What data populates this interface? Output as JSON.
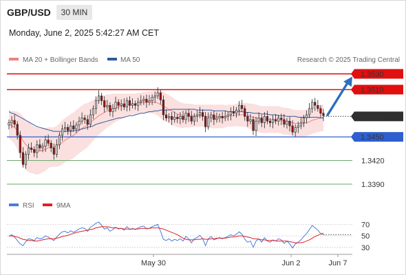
{
  "header": {
    "symbol": "GBP/USD",
    "timeframe": "30 MIN",
    "datetime": "Monday, June 2, 2025 5:42:27 AM CET"
  },
  "legend": {
    "bb_label": "MA 20 + Bollinger Bands",
    "ma50_label": "MA 50",
    "credit": "Research © 2025 Trading Central",
    "rsi_label": "RSI",
    "rsi9_label": "9MA"
  },
  "colors": {
    "up": "#d8d8d8",
    "down": "#a01010",
    "ma20": "#f08080",
    "bb_fill": "#fbe0e0",
    "ma50": "#2e5a9c",
    "resistance": "#e01010",
    "pivot": "#2f5fcf",
    "support": "#6aaa6a",
    "arrow": "#2b6fbd",
    "rsi": "#4a7bdc",
    "rsi_ma": "#e02020"
  },
  "chart_data": [
    {
      "type": "candlestick",
      "title": "GBP/USD 30 MIN",
      "x_ticks": [
        "May 30",
        "Jun 2",
        "Jun 7"
      ],
      "ylim": [
        1.3375,
        1.354
      ],
      "levels": [
        {
          "value": 1.353,
          "label": "1.3530",
          "kind": "resistance"
        },
        {
          "value": 1.351,
          "label": "1.3510",
          "kind": "resistance"
        },
        {
          "value": 1.3476,
          "label": "1.3476",
          "kind": "last"
        },
        {
          "value": 1.345,
          "label": "1.3450",
          "kind": "pivot"
        },
        {
          "value": 1.342,
          "label": "1.3420",
          "kind": "support"
        },
        {
          "value": 1.339,
          "label": "1.3390",
          "kind": "support"
        }
      ],
      "projection": {
        "from": 1.3476,
        "to": 1.353
      },
      "close": [
        1.3468,
        1.3471,
        1.3466,
        1.3452,
        1.343,
        1.3415,
        1.3428,
        1.3436,
        1.3434,
        1.343,
        1.344,
        1.3436,
        1.3438,
        1.3446,
        1.3442,
        1.3436,
        1.3428,
        1.344,
        1.3452,
        1.346,
        1.3462,
        1.3458,
        1.3464,
        1.346,
        1.3465,
        1.347,
        1.3474,
        1.3472,
        1.3466,
        1.3478,
        1.3486,
        1.3496,
        1.3502,
        1.3496,
        1.3488,
        1.349,
        1.3482,
        1.3486,
        1.3494,
        1.349,
        1.3492,
        1.3488,
        1.3496,
        1.349,
        1.3492,
        1.349,
        1.3494,
        1.3496,
        1.3498,
        1.3494,
        1.3496,
        1.35,
        1.3502,
        1.3506,
        1.3497,
        1.3478,
        1.3474,
        1.3476,
        1.3472,
        1.3475,
        1.3473,
        1.3476,
        1.3472,
        1.348,
        1.3476,
        1.347,
        1.3476,
        1.3478,
        1.3481,
        1.3476,
        1.3463,
        1.3474,
        1.3478,
        1.3472,
        1.3474,
        1.3476,
        1.3474,
        1.3476,
        1.3478,
        1.3482,
        1.348,
        1.3484,
        1.349,
        1.3486,
        1.3476,
        1.347,
        1.3472,
        1.3458,
        1.347,
        1.3474,
        1.3468,
        1.3476,
        1.347,
        1.3468,
        1.3472,
        1.347,
        1.3474,
        1.3472,
        1.3466,
        1.347,
        1.3464,
        1.3456,
        1.3462,
        1.3464,
        1.3468,
        1.3474,
        1.3478,
        1.3486,
        1.3494,
        1.349,
        1.3486,
        1.348,
        1.3477
      ],
      "ma20": [
        1.3466,
        1.3464,
        1.3462,
        1.3458,
        1.3452,
        1.3445,
        1.344,
        1.3437,
        1.3435,
        1.3433,
        1.3432,
        1.3432,
        1.3433,
        1.3434,
        1.3436,
        1.3437,
        1.3437,
        1.3438,
        1.344,
        1.3443,
        1.3446,
        1.3448,
        1.345,
        1.3452,
        1.3455,
        1.3458,
        1.3461,
        1.3463,
        1.3465,
        1.3468,
        1.3471,
        1.3474,
        1.3477,
        1.3479,
        1.3481,
        1.3483,
        1.3484,
        1.3486,
        1.3487,
        1.3488,
        1.3489,
        1.349,
        1.3491,
        1.3491,
        1.3492,
        1.3492,
        1.3493,
        1.3493,
        1.3494,
        1.3494,
        1.3494,
        1.3494,
        1.3494,
        1.3493,
        1.3491,
        1.3489,
        1.3487,
        1.3485,
        1.3483,
        1.3481,
        1.3479,
        1.3478,
        1.3477,
        1.3477,
        1.3477,
        1.3477,
        1.3477,
        1.3477,
        1.3477,
        1.3477,
        1.3476,
        1.3476,
        1.3476,
        1.3476,
        1.3476,
        1.3476,
        1.3476,
        1.3476,
        1.3477,
        1.3477,
        1.3477,
        1.3478,
        1.3478,
        1.3478,
        1.3478,
        1.3477,
        1.3476,
        1.3475,
        1.3474,
        1.3473,
        1.3472,
        1.3472,
        1.3472,
        1.3472,
        1.3472,
        1.3472,
        1.3472,
        1.3471,
        1.347,
        1.347,
        1.3469,
        1.3468,
        1.3467,
        1.3467,
        1.3467,
        1.3467,
        1.3468,
        1.3469,
        1.3471,
        1.3472,
        1.3473,
        1.3474,
        1.3474
      ],
      "ma50": [
        1.3482,
        1.348,
        1.3479,
        1.3477,
        1.3475,
        1.3473,
        1.3471,
        1.3469,
        1.3467,
        1.3465,
        1.3463,
        1.3462,
        1.3461,
        1.346,
        1.3459,
        1.3458,
        1.3457,
        1.3457,
        1.3457,
        1.3457,
        1.3457,
        1.3457,
        1.3457,
        1.3458,
        1.3458,
        1.3459,
        1.346,
        1.3461,
        1.3462,
        1.3463,
        1.3464,
        1.3466,
        1.3467,
        1.3468,
        1.3469,
        1.347,
        1.3471,
        1.3472,
        1.3473,
        1.3474,
        1.3474,
        1.3475,
        1.3476,
        1.3477,
        1.3477,
        1.3478,
        1.3479,
        1.348,
        1.348,
        1.3481,
        1.3482,
        1.3482,
        1.3483,
        1.3483,
        1.3484,
        1.3484,
        1.3484,
        1.3484,
        1.3485,
        1.3485,
        1.3485,
        1.3485,
        1.3485,
        1.3485,
        1.3485,
        1.3485,
        1.3485,
        1.3484,
        1.3484,
        1.3484,
        1.3484,
        1.3484,
        1.3484,
        1.3483,
        1.3483,
        1.3483,
        1.3483,
        1.3483,
        1.3482,
        1.3482,
        1.3482,
        1.3482,
        1.3482,
        1.3482,
        1.3481,
        1.3481,
        1.3481,
        1.348,
        1.348,
        1.348,
        1.3479,
        1.3479,
        1.3479,
        1.3478,
        1.3478,
        1.3478,
        1.3477,
        1.3477,
        1.3477,
        1.3476,
        1.3476,
        1.3476,
        1.3476,
        1.3475,
        1.3475,
        1.3475,
        1.3475,
        1.3475,
        1.3475,
        1.3475,
        1.3475,
        1.3474,
        1.3474
      ],
      "bb_width": [
        0.0018,
        0.0019,
        0.0021,
        0.0024,
        0.0028,
        0.0031,
        0.0032,
        0.0032,
        0.0031,
        0.003,
        0.003,
        0.0029,
        0.0028,
        0.0027,
        0.0026,
        0.0025,
        0.0025,
        0.0026,
        0.0027,
        0.0028,
        0.0028,
        0.0028,
        0.0029,
        0.0029,
        0.0029,
        0.0029,
        0.0029,
        0.0029,
        0.0028,
        0.0027,
        0.0026,
        0.0025,
        0.0024,
        0.0023,
        0.0022,
        0.0021,
        0.002,
        0.0019,
        0.0018,
        0.0017,
        0.0016,
        0.0015,
        0.0014,
        0.0014,
        0.0013,
        0.0013,
        0.0013,
        0.0013,
        0.0013,
        0.0013,
        0.0014,
        0.0014,
        0.0015,
        0.0016,
        0.0017,
        0.0018,
        0.0018,
        0.0018,
        0.0018,
        0.0017,
        0.0017,
        0.0016,
        0.0016,
        0.0015,
        0.0015,
        0.0015,
        0.0014,
        0.0014,
        0.0014,
        0.0014,
        0.0015,
        0.0015,
        0.0015,
        0.0015,
        0.0015,
        0.0015,
        0.0015,
        0.0014,
        0.0014,
        0.0014,
        0.0014,
        0.0014,
        0.0015,
        0.0015,
        0.0015,
        0.0016,
        0.0016,
        0.0017,
        0.0017,
        0.0017,
        0.0017,
        0.0017,
        0.0017,
        0.0017,
        0.0017,
        0.0017,
        0.0017,
        0.0017,
        0.0017,
        0.0017,
        0.0017,
        0.0017,
        0.0017,
        0.0017,
        0.0017,
        0.0017,
        0.0017,
        0.0017,
        0.0017,
        0.0017,
        0.0017,
        0.0017,
        0.0017
      ]
    },
    {
      "type": "line",
      "title": "RSI",
      "x_ticks": [
        "May 30",
        "Jun 2",
        "Jun 7"
      ],
      "y_ticks": [
        70,
        50,
        30
      ],
      "ylim": [
        25,
        80
      ],
      "series": [
        {
          "name": "RSI",
          "values": [
            49,
            52,
            48,
            42,
            36,
            33,
            40,
            45,
            44,
            42,
            47,
            45,
            46,
            50,
            48,
            45,
            42,
            48,
            53,
            57,
            58,
            55,
            59,
            56,
            59,
            62,
            64,
            63,
            58,
            65,
            68,
            72,
            74,
            68,
            62,
            64,
            58,
            61,
            65,
            62,
            63,
            60,
            66,
            61,
            63,
            61,
            64,
            66,
            67,
            62,
            63,
            66,
            68,
            70,
            58,
            44,
            42,
            45,
            41,
            44,
            42,
            45,
            41,
            49,
            45,
            38,
            45,
            47,
            51,
            45,
            33,
            45,
            49,
            43,
            45,
            47,
            45,
            47,
            49,
            52,
            50,
            53,
            57,
            53,
            44,
            39,
            41,
            30,
            41,
            45,
            39,
            47,
            41,
            39,
            43,
            41,
            45,
            43,
            37,
            41,
            36,
            29,
            36,
            39,
            43,
            49,
            54,
            61,
            68,
            64,
            60,
            54,
            52
          ]
        },
        {
          "name": "9MA",
          "values": [
            50,
            50,
            49,
            48,
            46,
            44,
            43,
            42,
            42,
            41,
            41,
            42,
            43,
            44,
            45,
            45,
            45,
            46,
            47,
            49,
            50,
            51,
            53,
            54,
            56,
            57,
            58,
            59,
            60,
            61,
            62,
            64,
            65,
            66,
            66,
            66,
            65,
            64,
            64,
            63,
            63,
            62,
            62,
            62,
            62,
            62,
            62,
            63,
            63,
            63,
            63,
            64,
            64,
            64,
            63,
            62,
            60,
            58,
            56,
            54,
            52,
            49,
            46,
            44,
            43,
            43,
            43,
            44,
            44,
            45,
            44,
            44,
            45,
            45,
            46,
            46,
            46,
            46,
            47,
            48,
            48,
            49,
            50,
            50,
            49,
            48,
            47,
            45,
            45,
            44,
            43,
            43,
            42,
            42,
            42,
            41,
            41,
            41,
            41,
            41,
            40,
            39,
            38,
            38,
            38,
            39,
            41,
            43,
            46,
            49,
            51,
            53,
            55
          ]
        }
      ]
    }
  ]
}
